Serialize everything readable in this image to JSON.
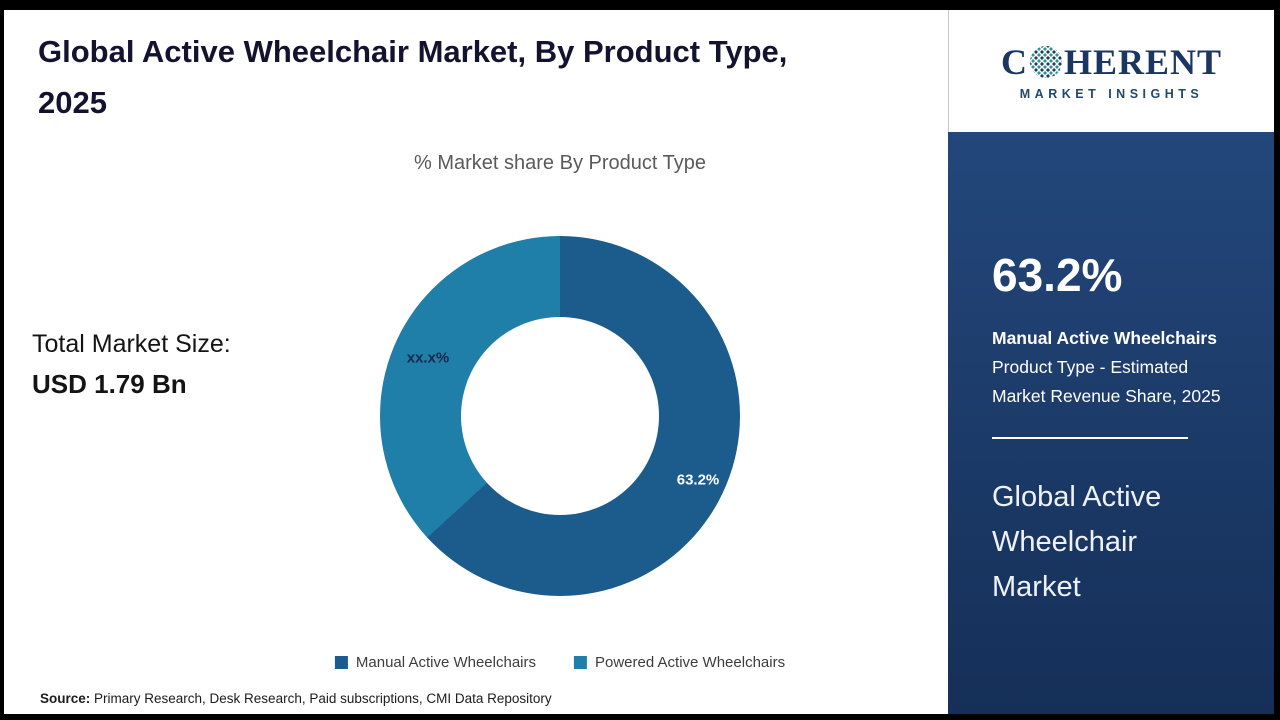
{
  "header": {
    "title": "Global Active Wheelchair Market, By Product Type, 2025"
  },
  "chart_data": {
    "type": "pie",
    "donut": true,
    "title": "% Market share By Product Type",
    "categories": [
      "Manual Active Wheelchairs",
      "Powered Active Wheelchairs"
    ],
    "values": [
      63.2,
      36.8
    ],
    "slice_labels": [
      "63.2%",
      "xx.x%"
    ],
    "colors": [
      "#1b5c8c",
      "#1f7fa8"
    ],
    "legend_position": "bottom"
  },
  "totals": {
    "label": "Total Market Size:",
    "value": "USD 1.79 Bn"
  },
  "footer": {
    "source_label": "Source:",
    "source_text": " Primary Research, Desk Research, Paid subscriptions, CMI Data Repository"
  },
  "logo": {
    "text_c": "C",
    "text_rest": "HERENT",
    "subtitle": "MARKET INSIGHTS"
  },
  "sidebar": {
    "stat_value": "63.2%",
    "desc_bold": "Manual Active Wheelchairs",
    "desc_rest": " Product Type - Estimated Market Revenue Share, 2025",
    "market_name": "Global Active Wheelchair Market",
    "panel_gradient_top": "#23477b",
    "panel_gradient_bottom": "#152f58"
  }
}
